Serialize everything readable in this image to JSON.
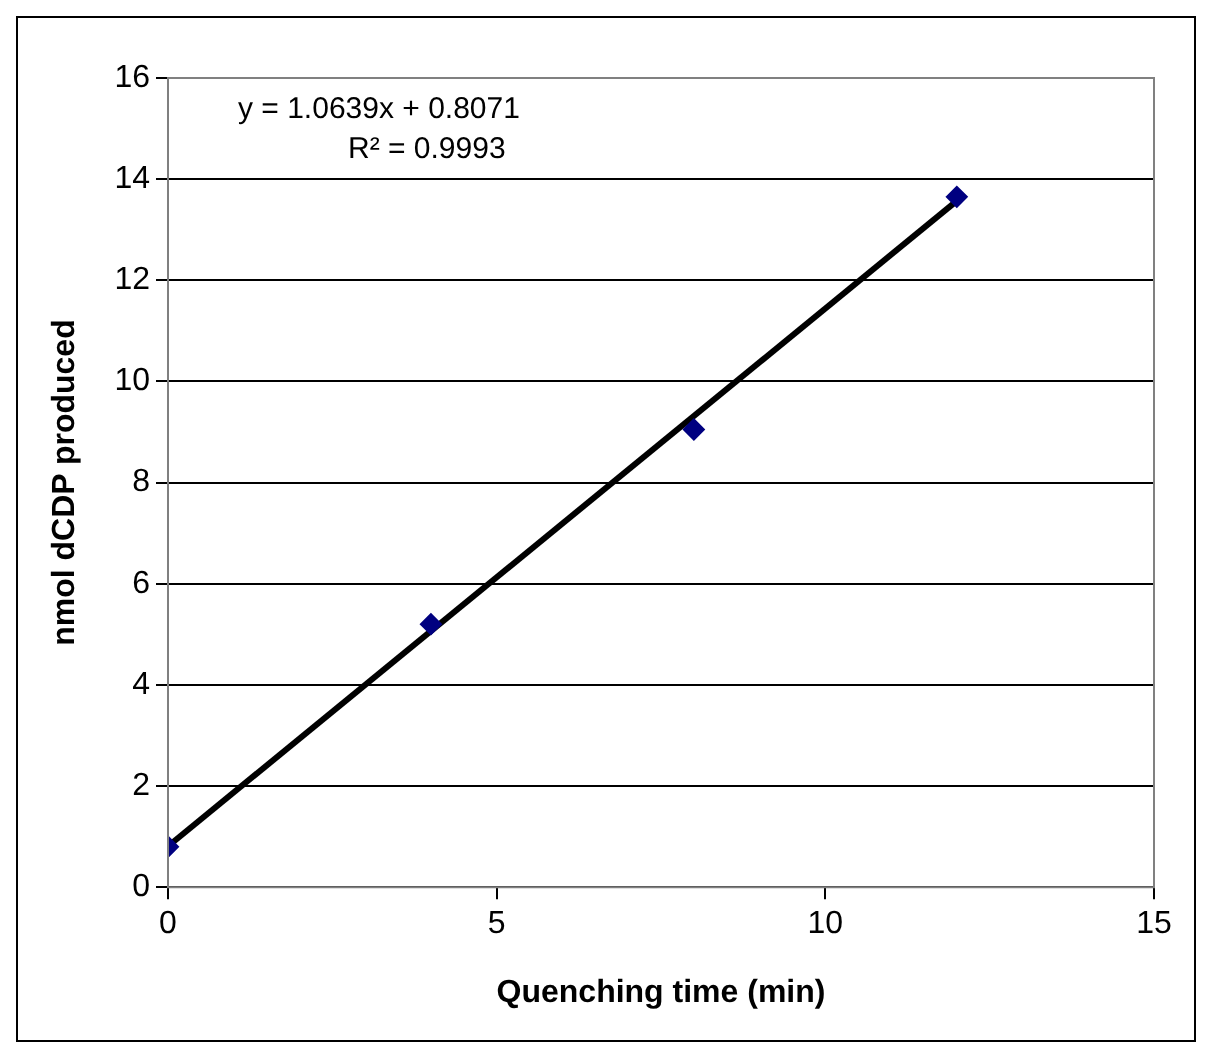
{
  "chart_data": {
    "type": "scatter",
    "xlabel": "Quenching time (min)",
    "ylabel": "nmol dCDP produced",
    "xlim": [
      0,
      15
    ],
    "xticks": [
      0,
      5,
      10,
      15
    ],
    "ylim": [
      0,
      16
    ],
    "yticks": [
      0,
      2,
      4,
      6,
      8,
      10,
      12,
      14,
      16
    ],
    "grid": "y",
    "legend": false,
    "series": [
      {
        "color": "#000080",
        "marker": "diamond",
        "x": [
          0,
          4,
          8,
          12
        ],
        "values": [
          0.8,
          5.2,
          9.05,
          13.65
        ]
      },
      {
        "type": "line",
        "color": "#000000",
        "line_style": "solid",
        "marker": "none",
        "x": [
          0,
          12
        ],
        "values": [
          0.81,
          13.57
        ]
      }
    ],
    "annotations": [
      "y = 1.0639x + 0.8071",
      "R² = 0.9993"
    ]
  }
}
